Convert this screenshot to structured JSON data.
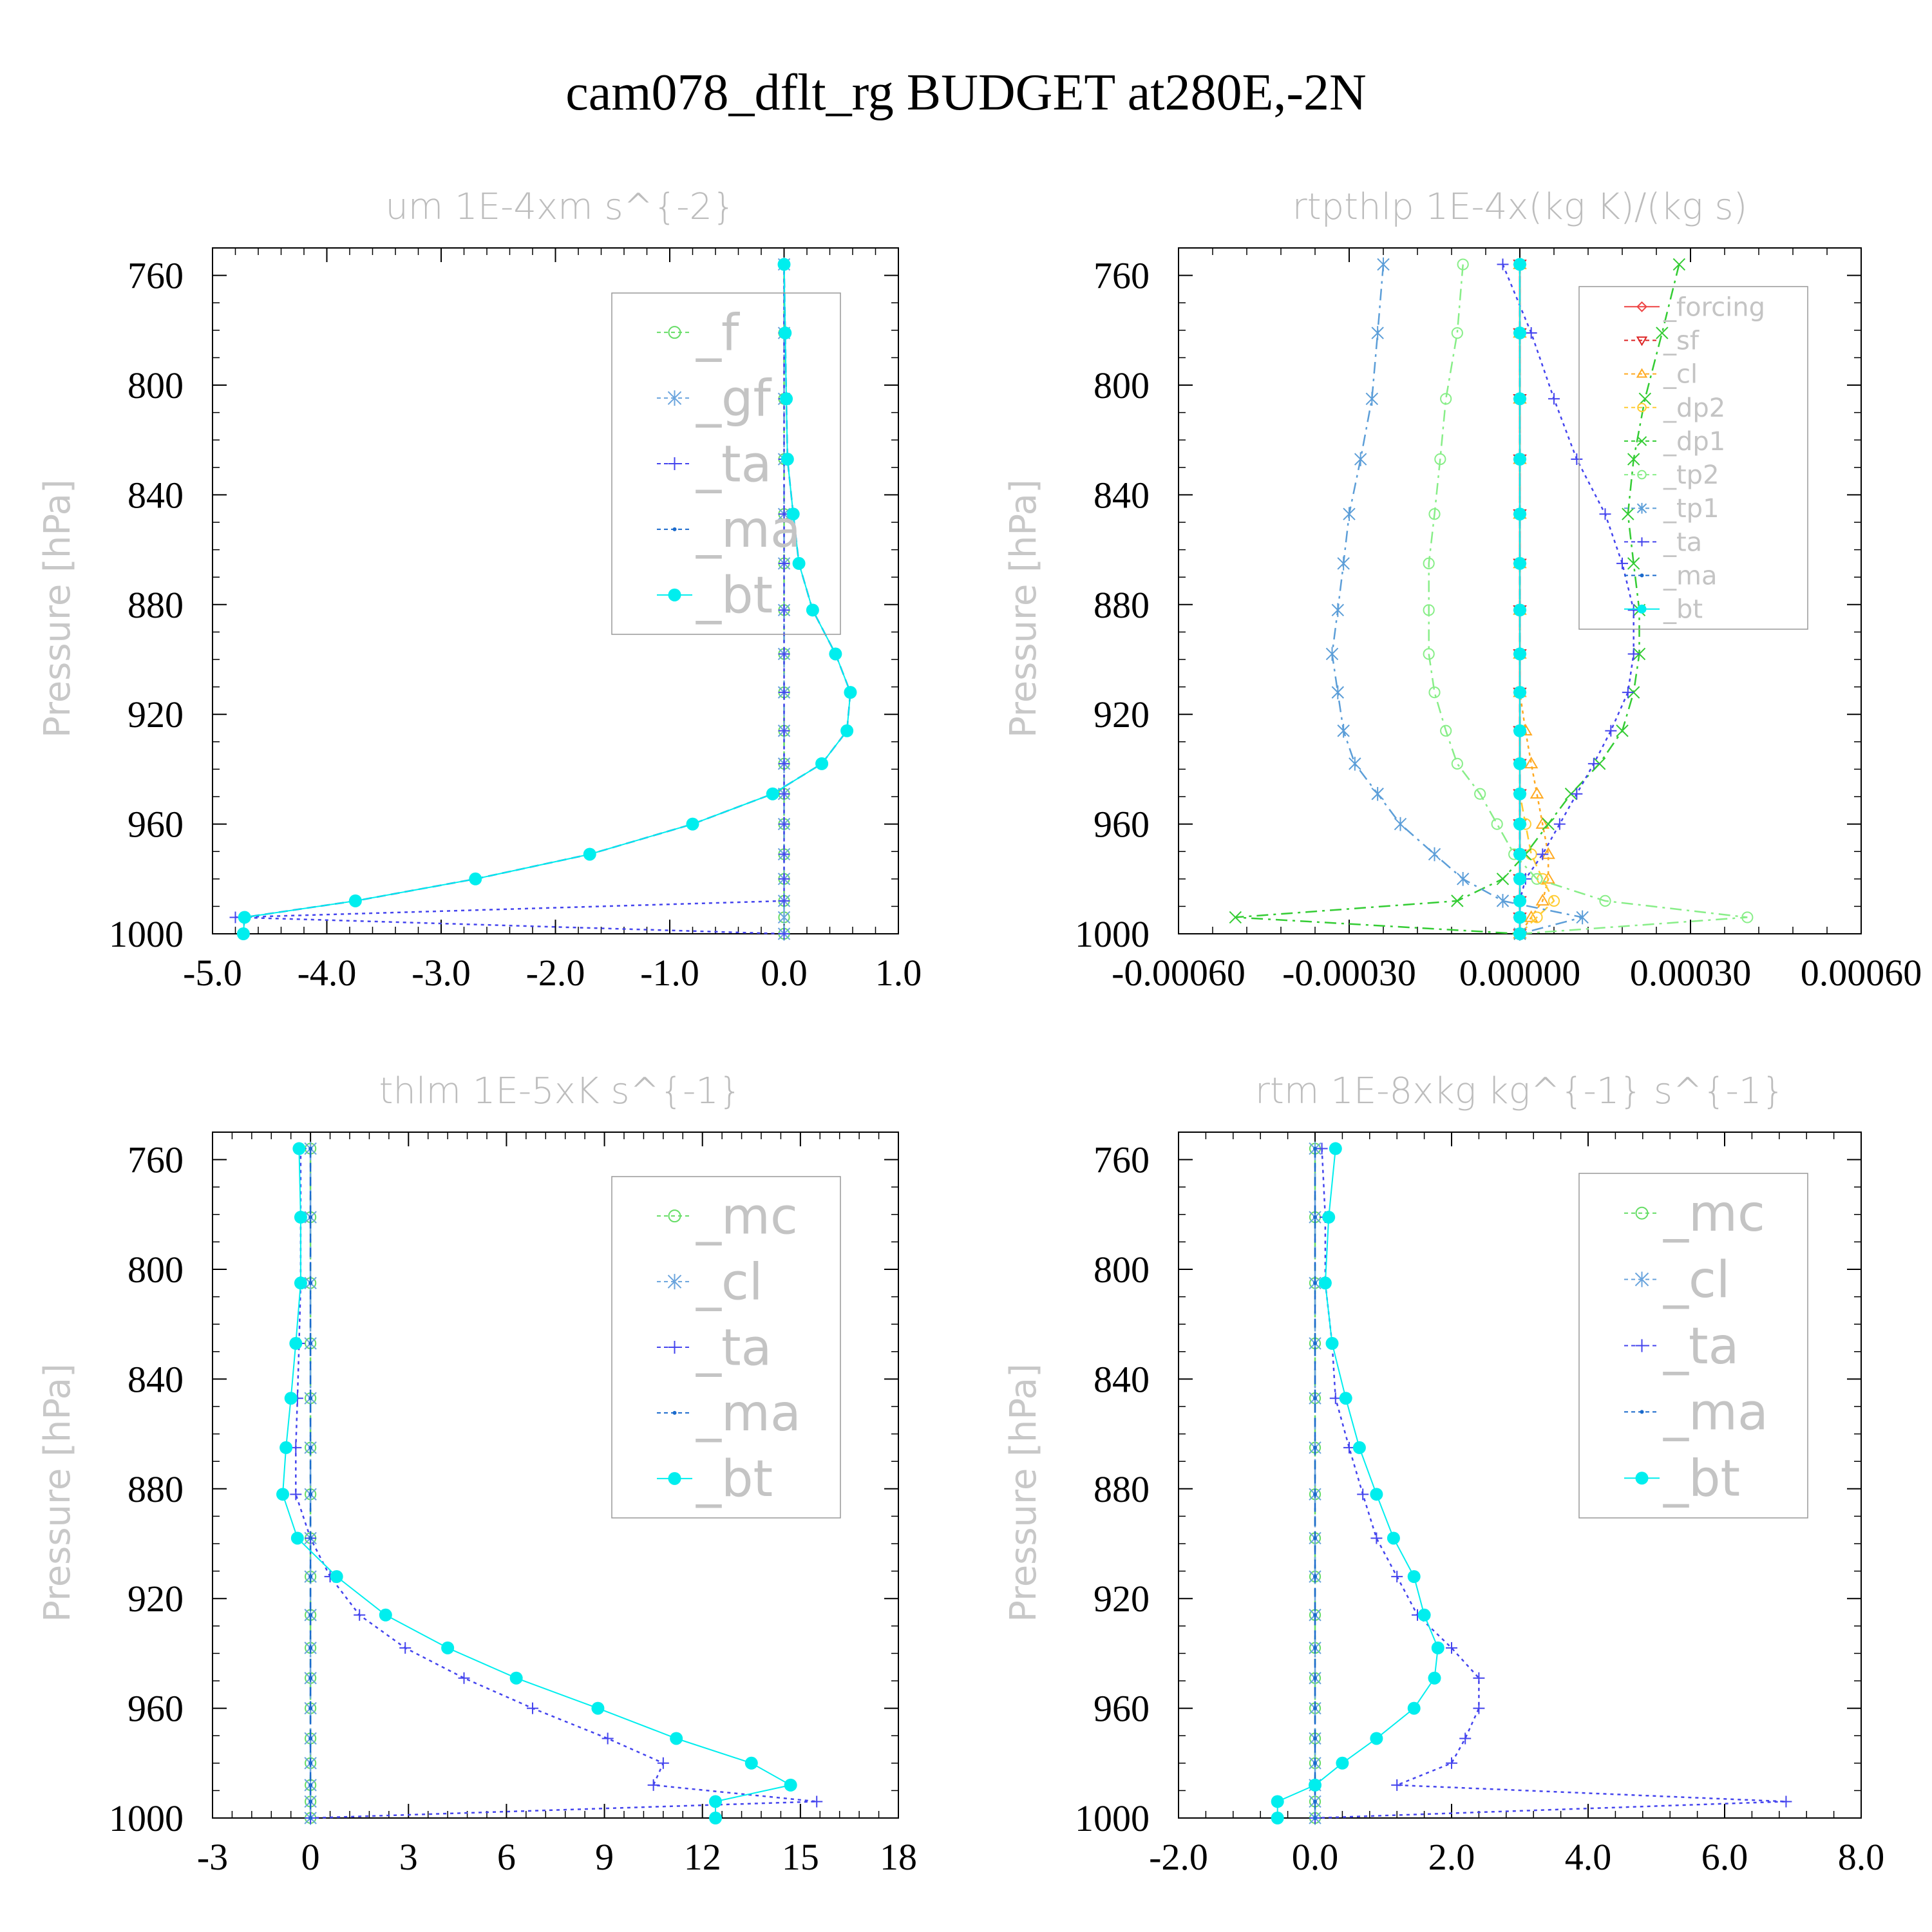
{
  "title": "cam078_dflt_rg  BUDGET at280E,-2N",
  "chart_data": [
    {
      "type": "line",
      "title": "um   1E-4xm s^{-2}",
      "ylabel": "Pressure [hPa]",
      "xlim": [
        -5.0,
        1.0
      ],
      "ylim": [
        1000,
        750
      ],
      "xticks": [
        "-5.0",
        "-4.0",
        "-3.0",
        "-2.0",
        "-1.0",
        "0.0",
        "1.0"
      ],
      "xtick_values": [
        -5,
        -4,
        -3,
        -2,
        -1,
        0,
        1
      ],
      "yticks": [
        "760",
        "800",
        "840",
        "880",
        "920",
        "960",
        "1000"
      ],
      "ytick_values": [
        760,
        800,
        840,
        880,
        920,
        960,
        1000
      ],
      "levels": [
        756,
        781,
        805,
        827,
        847,
        865,
        882,
        898,
        912,
        926,
        938,
        949,
        960,
        971,
        980,
        988,
        994,
        1000
      ],
      "series": [
        {
          "name": "_f",
          "color": "#66dd66",
          "marker": "circle-open",
          "dash": "10,8",
          "values": [
            0,
            0,
            0,
            0,
            0,
            0,
            0,
            0,
            0,
            0,
            0,
            0,
            0,
            0,
            0,
            0,
            0,
            0
          ]
        },
        {
          "name": "_gf",
          "color": "#6aa4dd",
          "marker": "asterisk",
          "dash": "18,8,4,8",
          "values": [
            0,
            0,
            0,
            0,
            0,
            0,
            0,
            0,
            0,
            0,
            0,
            0,
            0,
            0,
            0,
            0,
            0,
            0
          ]
        },
        {
          "name": "_ta",
          "color": "#4444ee",
          "marker": "plus",
          "dash": "5,6",
          "values": [
            0,
            0,
            0,
            0,
            0,
            0,
            0,
            0,
            0,
            0,
            0,
            0,
            0,
            0,
            0,
            0,
            -4.8,
            0
          ]
        },
        {
          "name": "_ma",
          "color": "#1a6acc",
          "marker": "dot",
          "dash": "14,8",
          "values": [
            0,
            0.01,
            0.02,
            0.03,
            0.08,
            0.13,
            0.25,
            0.45,
            0.58,
            0.55,
            0.33,
            -0.1,
            -0.8,
            -1.7,
            -2.7,
            -3.75,
            -4.72,
            -4.73
          ]
        },
        {
          "name": "_bt",
          "color": "#00eeee",
          "marker": "filled-circle",
          "dash": "",
          "values": [
            0,
            0.01,
            0.02,
            0.03,
            0.08,
            0.13,
            0.25,
            0.45,
            0.58,
            0.55,
            0.33,
            -0.1,
            -0.8,
            -1.7,
            -2.7,
            -3.75,
            -4.72,
            -4.73
          ]
        }
      ],
      "legend": {
        "position": "top-right",
        "font_size": 78
      }
    },
    {
      "type": "line",
      "title": "rtpthlp   1E-4x(kg K)/(kg s)",
      "ylabel": "Pressure [hPa]",
      "xlim": [
        -0.0006,
        0.0006
      ],
      "ylim": [
        1000,
        750
      ],
      "xticks": [
        "-0.00060",
        "-0.00030",
        "0.00000",
        "0.00030",
        "0.00060"
      ],
      "xtick_values": [
        -0.0006,
        -0.0003,
        0,
        0.0003,
        0.0006
      ],
      "yticks": [
        "760",
        "800",
        "840",
        "880",
        "920",
        "960",
        "1000"
      ],
      "ytick_values": [
        760,
        800,
        840,
        880,
        920,
        960,
        1000
      ],
      "levels": [
        756,
        781,
        805,
        827,
        847,
        865,
        882,
        898,
        912,
        926,
        938,
        949,
        960,
        971,
        980,
        988,
        994,
        1000
      ],
      "series": [
        {
          "name": "_forcing",
          "color": "#ee4444",
          "marker": "diamond-open",
          "dash": "",
          "values": [
            0,
            0,
            0,
            0,
            0,
            0,
            0,
            0,
            0,
            0,
            0,
            0,
            0,
            0,
            0,
            0,
            0,
            0
          ]
        },
        {
          "name": "_sf",
          "color": "#dd2222",
          "marker": "triangle-down",
          "dash": "10,8",
          "values": [
            0,
            0,
            0,
            0,
            0,
            0,
            0,
            0,
            0,
            0,
            0,
            0,
            0,
            0,
            0,
            0,
            0,
            0
          ]
        },
        {
          "name": "_cl",
          "color": "#ffaa22",
          "marker": "triangle-up",
          "dash": "5,6",
          "values": [
            0,
            0,
            0,
            0,
            0,
            0,
            0,
            0,
            0,
            1e-05,
            2e-05,
            3e-05,
            4e-05,
            5e-05,
            5e-05,
            4e-05,
            2e-05,
            0
          ]
        },
        {
          "name": "_dp2",
          "color": "#ffcc33",
          "marker": "circle-open",
          "dash": "14,8",
          "values": [
            0,
            0,
            0,
            0,
            0,
            0,
            0,
            0,
            0,
            0,
            0,
            0,
            1e-05,
            2e-05,
            4e-05,
            6e-05,
            3e-05,
            0
          ]
        },
        {
          "name": "_dp1",
          "color": "#33cc33",
          "marker": "x",
          "dash": "18,8,4,8",
          "values": [
            0.00028,
            0.00025,
            0.00022,
            0.0002,
            0.00019,
            0.0002,
            0.00021,
            0.00021,
            0.0002,
            0.00018,
            0.00014,
            9e-05,
            5e-05,
            1e-05,
            -3e-05,
            -0.00011,
            -0.0005,
            0
          ]
        },
        {
          "name": "_tp2",
          "color": "#88ee88",
          "marker": "circle-open",
          "dash": "18,8,4,8",
          "values": [
            -0.0001,
            -0.00011,
            -0.00013,
            -0.00014,
            -0.00015,
            -0.00016,
            -0.00016,
            -0.00016,
            -0.00015,
            -0.00013,
            -0.00011,
            -7e-05,
            -4e-05,
            -1e-05,
            3e-05,
            0.00015,
            0.0004,
            0
          ]
        },
        {
          "name": "_tp1",
          "color": "#5c9ed8",
          "marker": "asterisk",
          "dash": "18,8,4,8",
          "values": [
            -0.00024,
            -0.00025,
            -0.00026,
            -0.00028,
            -0.0003,
            -0.00031,
            -0.00032,
            -0.00033,
            -0.00032,
            -0.00031,
            -0.00029,
            -0.00025,
            -0.00021,
            -0.00015,
            -0.0001,
            -3e-05,
            0.00011,
            0
          ]
        },
        {
          "name": "_ta",
          "color": "#4444ee",
          "marker": "plus",
          "dash": "5,6",
          "values": [
            -3e-05,
            2e-05,
            6e-05,
            0.0001,
            0.00015,
            0.00018,
            0.0002,
            0.0002,
            0.00019,
            0.00016,
            0.00013,
            0.0001,
            7e-05,
            4e-05,
            1e-05,
            0,
            0,
            0
          ]
        },
        {
          "name": "_ma",
          "color": "#1a6acc",
          "marker": "dot",
          "dash": "14,8",
          "values": [
            0,
            0,
            0,
            0,
            0,
            0,
            0,
            0,
            0,
            0,
            0,
            0,
            0,
            0,
            0,
            0,
            0,
            0
          ]
        },
        {
          "name": "_bt",
          "color": "#00eeee",
          "marker": "filled-circle",
          "dash": "",
          "values": [
            0,
            0,
            0,
            0,
            0,
            0,
            0,
            0,
            0,
            0,
            0,
            0,
            0,
            0,
            0,
            0,
            0,
            0
          ]
        }
      ],
      "legend": {
        "position": "top-right",
        "font_size": 40
      }
    },
    {
      "type": "line",
      "title": "thlm   1E-5xK s^{-1}",
      "ylabel": "Pressure [hPa]",
      "xlim": [
        -3,
        18
      ],
      "ylim": [
        1000,
        750
      ],
      "xticks": [
        "-3",
        "0",
        "3",
        "6",
        "9",
        "12",
        "15",
        "18"
      ],
      "xtick_values": [
        -3,
        0,
        3,
        6,
        9,
        12,
        15,
        18
      ],
      "yticks": [
        "760",
        "800",
        "840",
        "880",
        "920",
        "960",
        "1000"
      ],
      "ytick_values": [
        760,
        800,
        840,
        880,
        920,
        960,
        1000
      ],
      "levels": [
        756,
        781,
        805,
        827,
        847,
        865,
        882,
        898,
        912,
        926,
        938,
        949,
        960,
        971,
        980,
        988,
        994,
        1000
      ],
      "series": [
        {
          "name": "_mc",
          "color": "#66dd66",
          "marker": "circle-open",
          "dash": "10,8",
          "values": [
            0,
            0,
            0,
            0,
            0,
            0,
            0,
            0,
            0,
            0,
            0,
            0,
            0,
            0,
            0,
            0,
            0,
            0
          ]
        },
        {
          "name": "_cl",
          "color": "#6aa4dd",
          "marker": "asterisk",
          "dash": "18,8,4,8",
          "values": [
            0,
            0,
            0,
            0,
            0,
            0,
            0,
            0,
            0,
            0,
            0,
            0,
            0,
            0,
            0,
            0,
            0,
            0
          ]
        },
        {
          "name": "_ta",
          "color": "#4444ee",
          "marker": "plus",
          "dash": "5,6",
          "values": [
            -0.3,
            -0.3,
            -0.3,
            -0.35,
            -0.4,
            -0.45,
            -0.45,
            0,
            0.6,
            1.5,
            2.9,
            4.7,
            6.8,
            9.1,
            10.8,
            10.5,
            15.5,
            0
          ]
        },
        {
          "name": "_ma",
          "color": "#1a6acc",
          "marker": "dot",
          "dash": "14,8",
          "values": [
            0,
            0,
            0,
            0,
            0,
            0,
            0,
            0,
            0,
            0,
            0,
            0,
            0,
            0,
            0,
            0,
            0,
            0
          ]
        },
        {
          "name": "_bt",
          "color": "#00eeee",
          "marker": "filled-circle",
          "dash": "",
          "values": [
            -0.35,
            -0.3,
            -0.3,
            -0.45,
            -0.6,
            -0.75,
            -0.85,
            -0.4,
            0.8,
            2.3,
            4.2,
            6.3,
            8.8,
            11.2,
            13.5,
            14.7,
            12.4,
            12.4
          ]
        }
      ],
      "legend": {
        "position": "top-right",
        "font_size": 78
      }
    },
    {
      "type": "line",
      "title": "rtm   1E-8xkg kg^{-1} s^{-1}",
      "ylabel": "Pressure [hPa]",
      "xlim": [
        -2.0,
        8.0
      ],
      "ylim": [
        1000,
        750
      ],
      "xticks": [
        "-2.0",
        "0.0",
        "2.0",
        "4.0",
        "6.0",
        "8.0"
      ],
      "xtick_values": [
        -2,
        0,
        2,
        4,
        6,
        8
      ],
      "yticks": [
        "760",
        "800",
        "840",
        "880",
        "920",
        "960",
        "1000"
      ],
      "ytick_values": [
        760,
        800,
        840,
        880,
        920,
        960,
        1000
      ],
      "levels": [
        756,
        781,
        805,
        827,
        847,
        865,
        882,
        898,
        912,
        926,
        938,
        949,
        960,
        971,
        980,
        988,
        994,
        1000
      ],
      "series": [
        {
          "name": "_mc",
          "color": "#66dd66",
          "marker": "circle-open",
          "dash": "10,8",
          "values": [
            0,
            0,
            0,
            0,
            0,
            0,
            0,
            0,
            0,
            0,
            0,
            0,
            0,
            0,
            0,
            0,
            0,
            0
          ]
        },
        {
          "name": "_cl",
          "color": "#6aa4dd",
          "marker": "asterisk",
          "dash": "18,8,4,8",
          "values": [
            0,
            0,
            0,
            0,
            0,
            0,
            0,
            0,
            0,
            0,
            0,
            0,
            0,
            0,
            0,
            0,
            0,
            0
          ]
        },
        {
          "name": "_ta",
          "color": "#4444ee",
          "marker": "plus",
          "dash": "5,6",
          "values": [
            0.1,
            0.15,
            0.15,
            0.25,
            0.3,
            0.5,
            0.7,
            0.9,
            1.2,
            1.5,
            2.0,
            2.4,
            2.4,
            2.2,
            2.0,
            1.2,
            6.9,
            0
          ]
        },
        {
          "name": "_ma",
          "color": "#1a6acc",
          "marker": "dot",
          "dash": "14,8",
          "values": [
            0,
            0,
            0,
            0,
            0,
            0,
            0,
            0,
            0,
            0,
            0,
            0,
            0,
            0,
            0,
            0,
            0,
            0
          ]
        },
        {
          "name": "_bt",
          "color": "#00eeee",
          "marker": "filled-circle",
          "dash": "",
          "values": [
            0.3,
            0.2,
            0.15,
            0.25,
            0.45,
            0.65,
            0.9,
            1.15,
            1.45,
            1.6,
            1.8,
            1.75,
            1.45,
            0.9,
            0.4,
            0,
            -0.55,
            -0.55
          ]
        }
      ],
      "legend": {
        "position": "top-right",
        "font_size": 78
      }
    }
  ]
}
